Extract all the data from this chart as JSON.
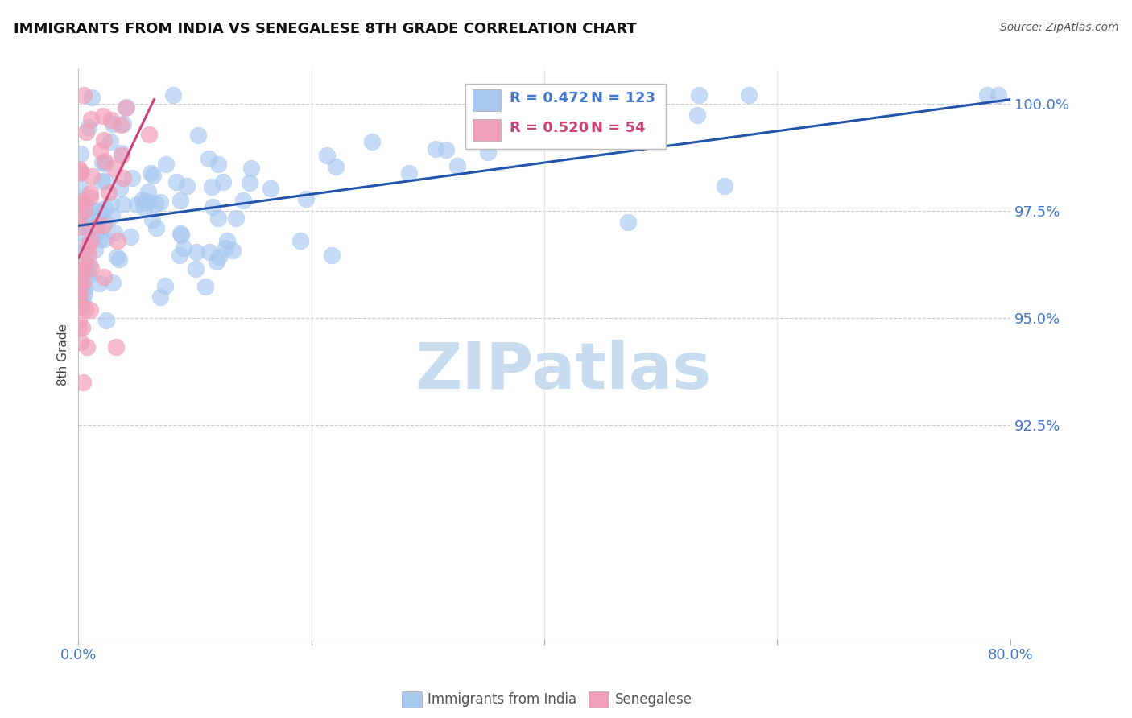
{
  "title": "IMMIGRANTS FROM INDIA VS SENEGALESE 8TH GRADE CORRELATION CHART",
  "source": "Source: ZipAtlas.com",
  "ylabel": "8th Grade",
  "ytick_labels": [
    "92.5%",
    "95.0%",
    "97.5%",
    "100.0%"
  ],
  "ytick_values": [
    0.925,
    0.95,
    0.975,
    1.0
  ],
  "xlim": [
    0.0,
    0.8
  ],
  "ylim": [
    0.875,
    1.008
  ],
  "blue_R": 0.472,
  "blue_N": 123,
  "pink_R": 0.52,
  "pink_N": 54,
  "blue_color": "#A8C8F0",
  "pink_color": "#F0A0B8",
  "blue_line_color": "#2255AA",
  "pink_line_color": "#CC4477",
  "legend_blue_text_color": "#4477CC",
  "legend_pink_text_color": "#CC4477",
  "axis_tick_color": "#4477CC",
  "watermark_color": "#C8DCF0",
  "background_color": "#FFFFFF",
  "grid_color": "#CCCCCC",
  "seed": 42,
  "blue_trendline_x": [
    0.0,
    0.8
  ],
  "blue_trendline_y": [
    0.9715,
    1.001
  ],
  "pink_trendline_x": [
    0.0,
    0.065
  ],
  "pink_trendline_y": [
    0.964,
    1.001
  ]
}
